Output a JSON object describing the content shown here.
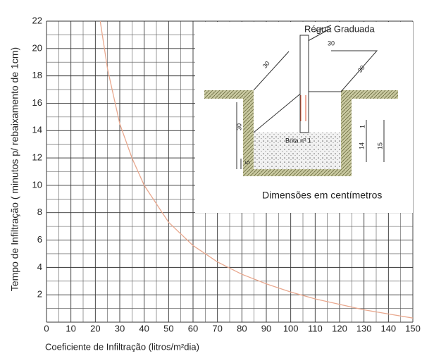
{
  "chart_data": {
    "type": "line",
    "xlabel": "Coeficiente de Infiltração (litros/m²dia)",
    "ylabel": "Tempo de Infiltração ( minutos p/ rebaixamento de 1cm)",
    "x": [
      22,
      25,
      30,
      35,
      40,
      50,
      60,
      70,
      80,
      90,
      100,
      110,
      120,
      130,
      140,
      150
    ],
    "series": [
      {
        "color": "#e9a88e",
        "values": [
          22,
          18.5,
          14.5,
          12,
          10,
          7.3,
          5.6,
          4.4,
          3.5,
          2.8,
          2.2,
          1.7,
          1.3,
          0.9,
          0.6,
          0.3
        ]
      }
    ],
    "xlim": [
      0,
      150
    ],
    "ylim": [
      0,
      22
    ],
    "xticks": [
      0,
      10,
      20,
      30,
      40,
      50,
      60,
      70,
      80,
      90,
      100,
      110,
      120,
      130,
      140,
      150
    ],
    "yticks": [
      2,
      4,
      6,
      8,
      10,
      12,
      14,
      16,
      18,
      20,
      22
    ],
    "grid": true
  },
  "inset": {
    "title": "Régua Graduada",
    "dim_a": "30",
    "dim_b": "30",
    "dim_c": "30",
    "dim_d": "30",
    "gravel": "Brita nº 1",
    "dim_e": "1",
    "dim_f": "14",
    "dim_g": "15",
    "dim_h": "5",
    "caption": "Dimensões em centímetros"
  }
}
